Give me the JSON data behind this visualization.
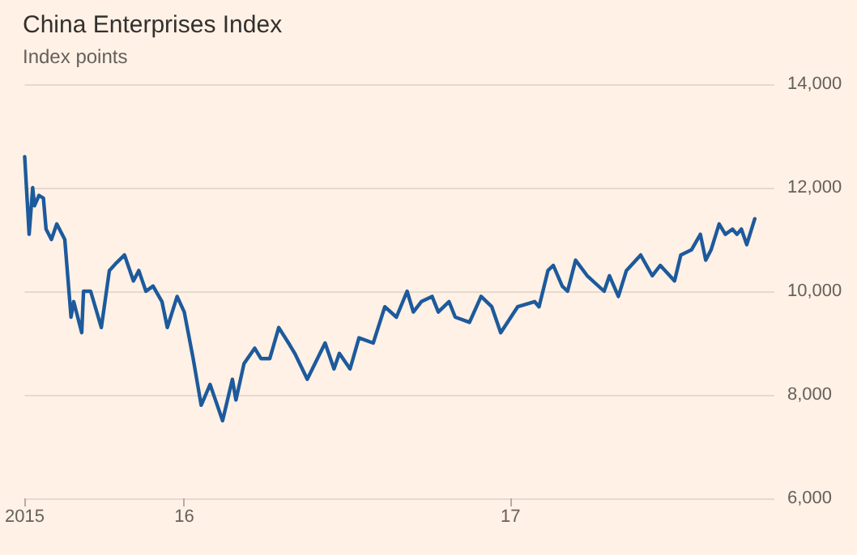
{
  "chart_data": {
    "type": "line",
    "title": "China Enterprises Index",
    "subtitle": "Index points",
    "x": [
      "2015-07-06",
      "2015-07-11",
      "2015-07-15",
      "2015-07-17",
      "2015-07-22",
      "2015-07-27",
      "2015-07-30",
      "2015-08-05",
      "2015-08-11",
      "2015-08-20",
      "2015-08-27",
      "2015-08-30",
      "2015-09-08",
      "2015-09-10",
      "2015-09-18",
      "2015-09-30",
      "2015-10-09",
      "2015-10-17",
      "2015-10-26",
      "2015-11-05",
      "2015-11-11",
      "2015-11-19",
      "2015-11-27",
      "2015-12-07",
      "2015-12-13",
      "2015-12-24",
      "2016-01-01",
      "2016-01-11",
      "2016-01-20",
      "2016-01-30",
      "2016-02-05",
      "2016-02-13",
      "2016-02-24",
      "2016-02-28",
      "2016-03-08",
      "2016-03-20",
      "2016-03-27",
      "2016-04-06",
      "2016-04-16",
      "2016-04-27",
      "2016-05-04",
      "2016-05-18",
      "2016-06-07",
      "2016-06-17",
      "2016-06-23",
      "2016-07-05",
      "2016-07-15",
      "2016-07-31",
      "2016-08-13",
      "2016-08-26",
      "2016-09-07",
      "2016-09-14",
      "2016-09-23",
      "2016-10-05",
      "2016-10-12",
      "2016-10-24",
      "2016-10-31",
      "2016-11-16",
      "2016-11-29",
      "2016-12-11",
      "2016-12-21",
      "2017-01-09",
      "2017-01-28",
      "2017-02-02",
      "2017-02-12",
      "2017-02-18",
      "2017-02-28",
      "2017-03-06",
      "2017-03-15",
      "2017-03-28",
      "2017-04-16",
      "2017-04-22",
      "2017-05-02",
      "2017-05-11",
      "2017-05-27",
      "2017-06-09",
      "2017-06-18",
      "2017-07-04",
      "2017-07-11",
      "2017-07-23",
      "2017-08-02",
      "2017-08-08",
      "2017-08-14",
      "2017-08-23",
      "2017-08-30",
      "2017-09-07",
      "2017-09-12",
      "2017-09-17",
      "2017-09-23",
      "2017-10-02"
    ],
    "series": [
      {
        "color": "#1d5a9c",
        "values": [
          12600,
          11100,
          12000,
          11650,
          11850,
          11800,
          11200,
          11000,
          11300,
          11000,
          9500,
          9800,
          9200,
          10000,
          10000,
          9300,
          10400,
          10550,
          10700,
          10200,
          10400,
          10000,
          10100,
          9800,
          9300,
          9900,
          9600,
          8700,
          7800,
          8200,
          7900,
          7500,
          8300,
          7900,
          8600,
          8900,
          8700,
          8700,
          9300,
          9000,
          8800,
          8300,
          9000,
          8500,
          8800,
          8500,
          9100,
          9000,
          9700,
          9500,
          10000,
          9600,
          9800,
          9900,
          9600,
          9800,
          9500,
          9400,
          9900,
          9700,
          9200,
          9700,
          9800,
          9700,
          10400,
          10500,
          10100,
          10000,
          10600,
          10300,
          10000,
          10300,
          9900,
          10400,
          10700,
          10300,
          10500,
          10200,
          10700,
          10800,
          11100,
          10600,
          10800,
          11300,
          11100,
          11200,
          11100,
          11200,
          10900,
          11400
        ]
      }
    ],
    "xlim": [
      "2015-07-06",
      "2017-10-24"
    ],
    "xticks": [
      {
        "value": "2015-07-06",
        "label": "2015"
      },
      {
        "value": "2016-01-01",
        "label": "16"
      },
      {
        "value": "2017-01-01",
        "label": "17"
      }
    ],
    "ylim": [
      6000,
      14000
    ],
    "yticks": [
      {
        "value": 6000,
        "label": "6,000"
      },
      {
        "value": 8000,
        "label": "8,000"
      },
      {
        "value": 10000,
        "label": "10,000"
      },
      {
        "value": 12000,
        "label": "12,000"
      },
      {
        "value": 14000,
        "label": "14,000"
      }
    ],
    "grid": "y",
    "marker": "none",
    "line_style": "solid"
  }
}
